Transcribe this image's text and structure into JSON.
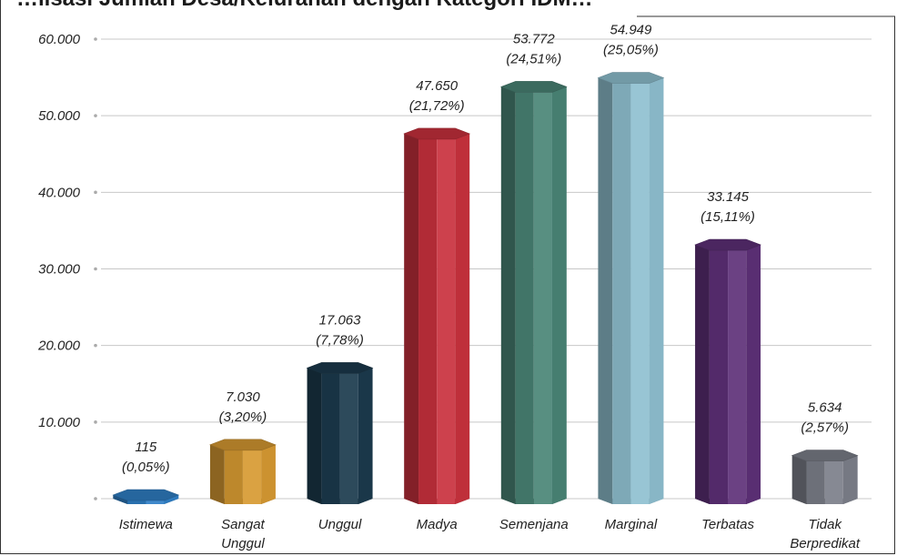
{
  "title": "…lisasi Jumlah Desa/Kelurahan dengan Kategori IDM…",
  "chart_data": {
    "type": "bar",
    "categories": [
      [
        "Istimewa"
      ],
      [
        "Sangat",
        "Unggul"
      ],
      [
        "Unggul"
      ],
      [
        "Madya"
      ],
      [
        "Semenjana"
      ],
      [
        "Marginal"
      ],
      [
        "Terbatas"
      ],
      [
        "Tidak",
        "Berpredikat"
      ]
    ],
    "values": [
      115,
      7030,
      17063,
      47650,
      53772,
      54949,
      33145,
      5634
    ],
    "value_labels": [
      "115",
      "7.030",
      "17.063",
      "47.650",
      "53.772",
      "54.949",
      "33.145",
      "5.634"
    ],
    "percent_labels": [
      "(0,05%)",
      "(3,20%)",
      "(7,78%)",
      "(21,72%)",
      "(24,51%)",
      "(25,05%)",
      "(15,11%)",
      "(2,57%)"
    ],
    "colors": [
      "#2f7fc6",
      "#d79a32",
      "#1b3a4d",
      "#c9313d",
      "#4a8576",
      "#8fc0d0",
      "#5e3078",
      "#7c7f8a"
    ],
    "yticks": [
      "60.000",
      "50.000",
      "40.000",
      "30.000",
      "20.000",
      "10.000",
      ""
    ],
    "ylim": [
      0,
      60000
    ],
    "grid": true,
    "style": "3d-octagonal-cylinders"
  }
}
